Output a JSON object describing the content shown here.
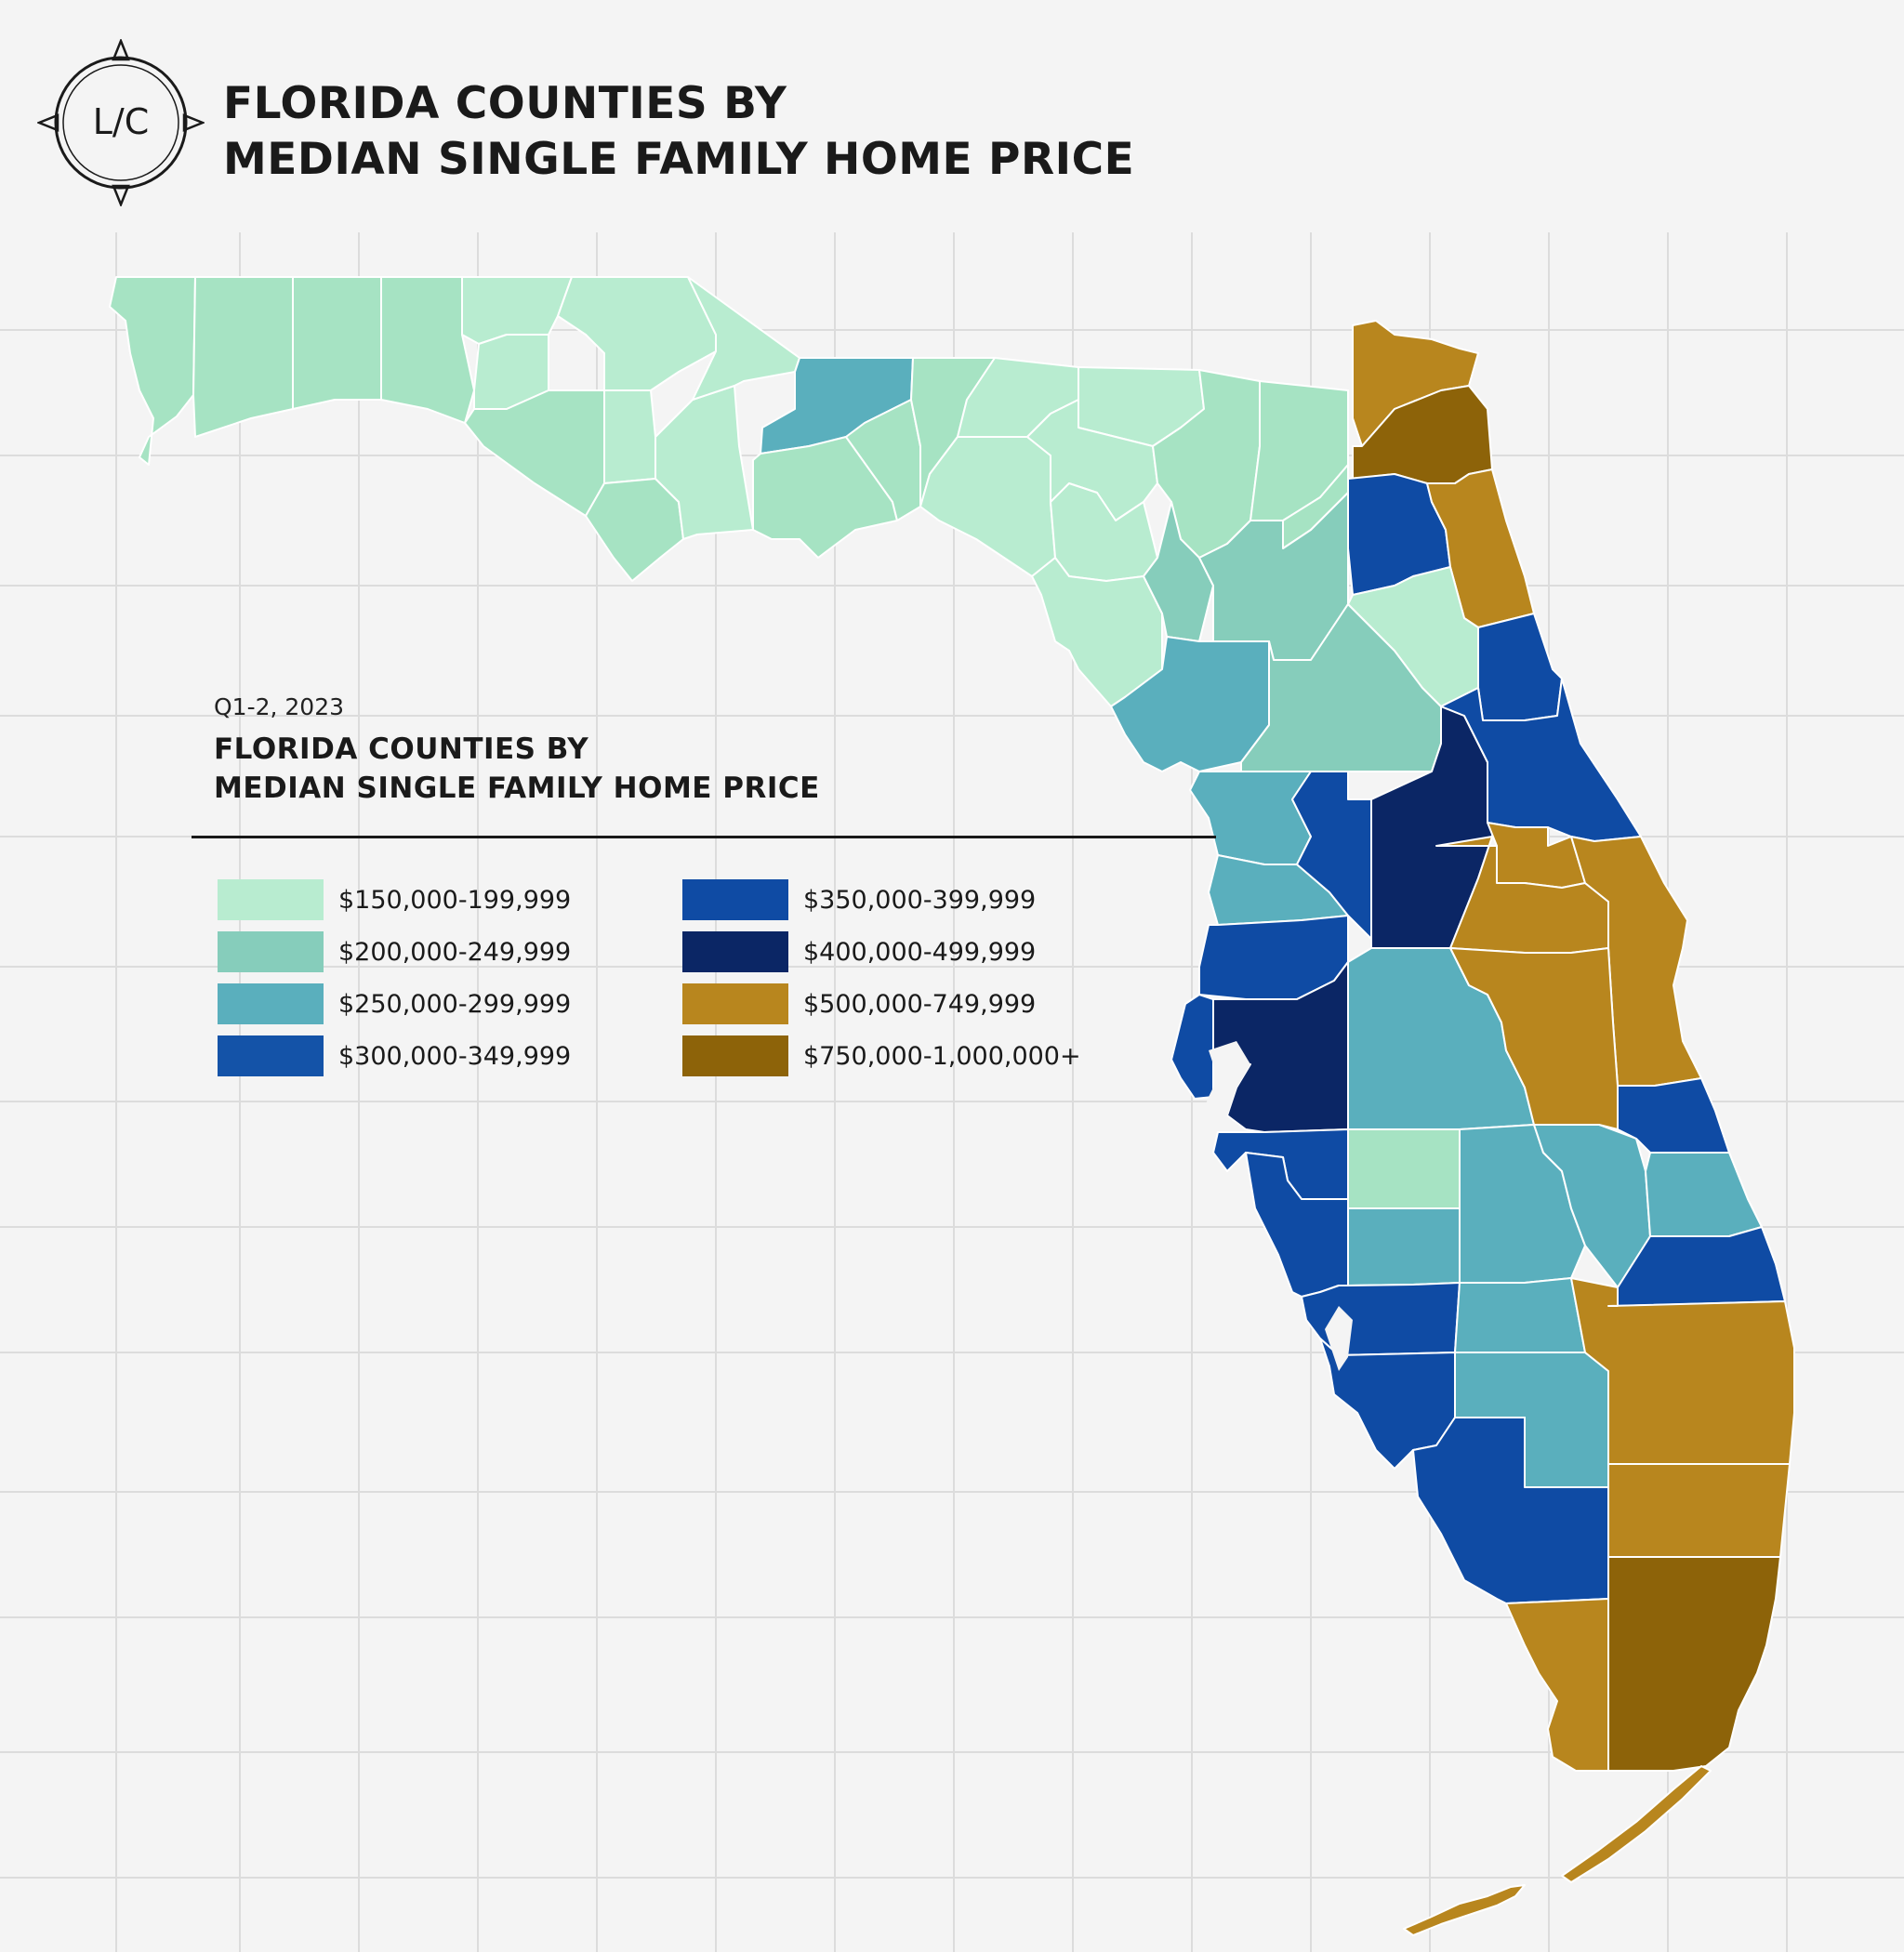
{
  "header": {
    "logo_text": "L/C",
    "title_line1": "FLORIDA COUNTIES BY",
    "title_line2": "MEDIAN SINGLE FAMILY HOME PRICE"
  },
  "legend": {
    "date": "Q1-2, 2023",
    "title_line1": "FLORIDA COUNTIES BY",
    "title_line2": "MEDIAN SINGLE FAMILY HOME PRICE",
    "items": [
      {
        "label": "$150,000-199,999",
        "color": "#b8ecd0"
      },
      {
        "label": "$200,000-249,999",
        "color": "#86cdbb"
      },
      {
        "label": "$250,000-299,999",
        "color": "#5aafbd"
      },
      {
        "label": "$300,000-349,999",
        "color": "#1453a8"
      },
      {
        "label": "$350,000-399,999",
        "color": "#0f4ba4"
      },
      {
        "label": "$400,000-499,999",
        "color": "#0b2665"
      },
      {
        "label": "$500,000-749,999",
        "color": "#b8861e"
      },
      {
        "label": "$750,000-1,000,000+",
        "color": "#8d6309"
      }
    ]
  },
  "map": {
    "bins": {
      "b1": "#b8ecd0",
      "b1b": "#a6e3c3",
      "b2": "#86cdbb",
      "b3": "#5aafbd",
      "b4": "#1453a8",
      "b5": "#0f4ba4",
      "b6": "#0b2665",
      "b7": "#b8861e",
      "b8": "#8d6309"
    }
  }
}
